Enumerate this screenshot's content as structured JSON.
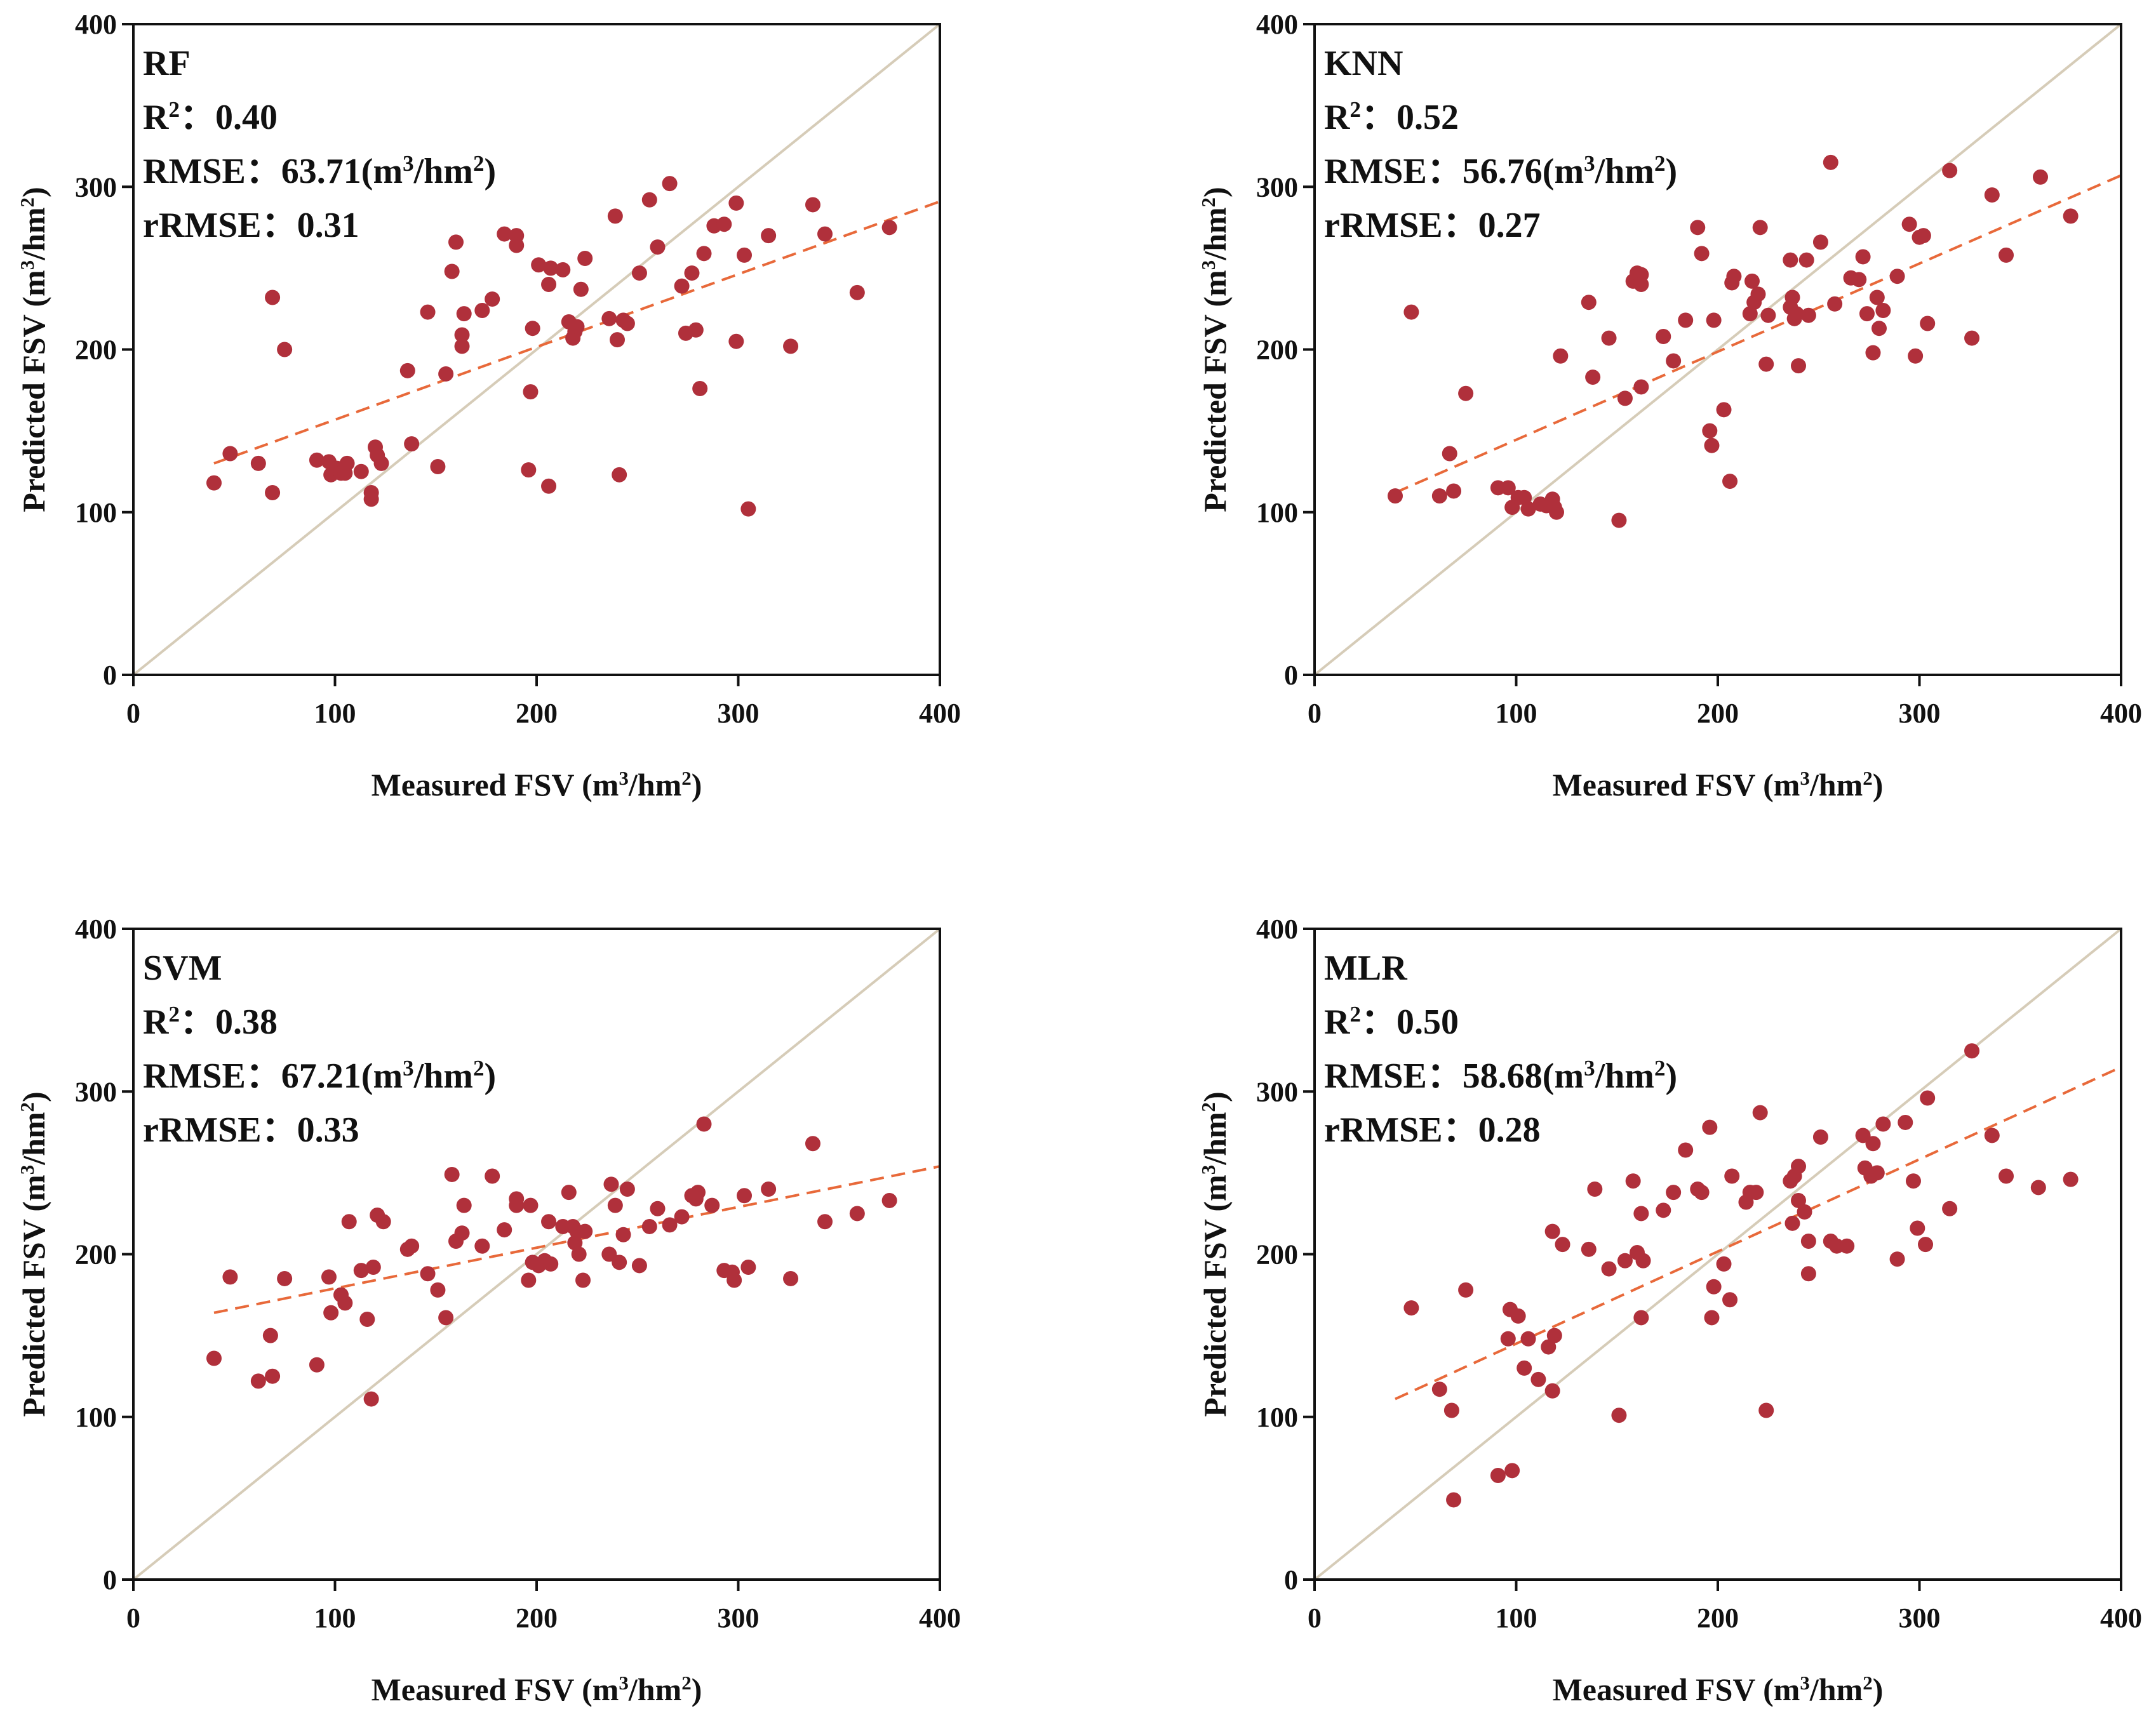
{
  "figure": {
    "axis_x_label": "Measured FSV (m³/hm²)",
    "axis_y_label": "Predicted FSV (m³/hm²)",
    "tick_values": [
      0,
      100,
      200,
      300,
      400
    ],
    "colors": {
      "point": "#b0303b",
      "fit": "#e8693a",
      "one_to_one": "#d6ccb8",
      "axis": "#111111"
    }
  },
  "chart_data": [
    {
      "type": "scatter",
      "title": "RF",
      "stats": {
        "r2_label": "R²：",
        "r2": "0.40",
        "rmse_label": "RMSE：",
        "rmse": "63.71",
        "rmse_unit": "(m³/hm²)",
        "rrmse_label": "rRMSE：",
        "rrmse": "0.31"
      },
      "xlabel": "Measured FSV (m³/hm²)",
      "ylabel": "Predicted FSV (m³/hm²)",
      "xlim": [
        0,
        400
      ],
      "ylim": [
        0,
        400
      ],
      "fit_line": {
        "x": [
          40,
          400
        ],
        "y": [
          130,
          291
        ]
      },
      "points": [
        [
          40,
          118
        ],
        [
          48,
          136
        ],
        [
          62,
          130
        ],
        [
          69,
          232
        ],
        [
          69,
          112
        ],
        [
          75,
          200
        ],
        [
          91,
          132
        ],
        [
          97,
          131
        ],
        [
          98,
          123
        ],
        [
          101,
          127
        ],
        [
          103,
          124
        ],
        [
          105,
          124
        ],
        [
          106,
          130
        ],
        [
          113,
          125
        ],
        [
          118,
          112
        ],
        [
          118,
          108
        ],
        [
          120,
          140
        ],
        [
          121,
          135
        ],
        [
          123,
          130
        ],
        [
          136,
          187
        ],
        [
          138,
          142
        ],
        [
          146,
          223
        ],
        [
          151,
          128
        ],
        [
          155,
          185
        ],
        [
          158,
          248
        ],
        [
          160,
          266
        ],
        [
          163,
          209
        ],
        [
          163,
          202
        ],
        [
          164,
          222
        ],
        [
          173,
          224
        ],
        [
          178,
          231
        ],
        [
          184,
          271
        ],
        [
          190,
          270
        ],
        [
          190,
          264
        ],
        [
          196,
          126
        ],
        [
          197,
          174
        ],
        [
          198,
          213
        ],
        [
          201,
          252
        ],
        [
          206,
          116
        ],
        [
          206,
          240
        ],
        [
          207,
          250
        ],
        [
          213,
          249
        ],
        [
          216,
          217
        ],
        [
          218,
          207
        ],
        [
          219,
          211
        ],
        [
          220,
          214
        ],
        [
          222,
          237
        ],
        [
          224,
          256
        ],
        [
          236,
          219
        ],
        [
          239,
          282
        ],
        [
          240,
          206
        ],
        [
          241,
          123
        ],
        [
          243,
          218
        ],
        [
          245,
          216
        ],
        [
          251,
          247
        ],
        [
          256,
          292
        ],
        [
          260,
          263
        ],
        [
          266,
          302
        ],
        [
          272,
          239
        ],
        [
          274,
          210
        ],
        [
          277,
          247
        ],
        [
          279,
          212
        ],
        [
          281,
          176
        ],
        [
          283,
          259
        ],
        [
          288,
          276
        ],
        [
          293,
          277
        ],
        [
          299,
          290
        ],
        [
          299,
          205
        ],
        [
          303,
          258
        ],
        [
          305,
          102
        ],
        [
          315,
          270
        ],
        [
          326,
          202
        ],
        [
          337,
          289
        ],
        [
          343,
          271
        ],
        [
          359,
          235
        ],
        [
          375,
          275
        ]
      ]
    },
    {
      "type": "scatter",
      "title": "KNN",
      "stats": {
        "r2_label": "R²：",
        "r2": "0.52",
        "rmse_label": "RMSE：",
        "rmse": "56.76",
        "rmse_unit": "(m³/hm²)",
        "rrmse_label": "rRMSE：",
        "rrmse": "0.27"
      },
      "xlabel": "Measured FSV (m³/hm²)",
      "ylabel": "Predicted FSV (m³/hm²)",
      "xlim": [
        0,
        400
      ],
      "ylim": [
        0,
        400
      ],
      "fit_line": {
        "x": [
          40,
          400
        ],
        "y": [
          112,
          307
        ]
      },
      "points": [
        [
          40,
          110
        ],
        [
          48,
          223
        ],
        [
          62,
          110
        ],
        [
          67,
          136
        ],
        [
          69,
          113
        ],
        [
          75,
          173
        ],
        [
          91,
          115
        ],
        [
          96,
          115
        ],
        [
          98,
          103
        ],
        [
          101,
          109
        ],
        [
          104,
          109
        ],
        [
          106,
          102
        ],
        [
          112,
          105
        ],
        [
          115,
          104
        ],
        [
          118,
          108
        ],
        [
          119,
          103
        ],
        [
          120,
          100
        ],
        [
          122,
          196
        ],
        [
          136,
          229
        ],
        [
          138,
          183
        ],
        [
          146,
          207
        ],
        [
          151,
          95
        ],
        [
          154,
          170
        ],
        [
          158,
          242
        ],
        [
          160,
          247
        ],
        [
          162,
          246
        ],
        [
          162,
          240
        ],
        [
          162,
          177
        ],
        [
          173,
          208
        ],
        [
          178,
          193
        ],
        [
          184,
          218
        ],
        [
          190,
          275
        ],
        [
          192,
          259
        ],
        [
          196,
          150
        ],
        [
          197,
          141
        ],
        [
          198,
          218
        ],
        [
          203,
          163
        ],
        [
          206,
          119
        ],
        [
          207,
          241
        ],
        [
          208,
          245
        ],
        [
          216,
          222
        ],
        [
          217,
          242
        ],
        [
          218,
          229
        ],
        [
          220,
          234
        ],
        [
          221,
          275
        ],
        [
          224,
          191
        ],
        [
          225,
          221
        ],
        [
          236,
          226
        ],
        [
          236,
          255
        ],
        [
          237,
          232
        ],
        [
          238,
          219
        ],
        [
          239,
          222
        ],
        [
          240,
          190
        ],
        [
          244,
          255
        ],
        [
          245,
          221
        ],
        [
          251,
          266
        ],
        [
          256,
          315
        ],
        [
          258,
          228
        ],
        [
          266,
          244
        ],
        [
          270,
          243
        ],
        [
          272,
          257
        ],
        [
          274,
          222
        ],
        [
          277,
          198
        ],
        [
          279,
          232
        ],
        [
          280,
          213
        ],
        [
          282,
          224
        ],
        [
          289,
          245
        ],
        [
          295,
          277
        ],
        [
          298,
          196
        ],
        [
          300,
          269
        ],
        [
          302,
          270
        ],
        [
          304,
          216
        ],
        [
          315,
          310
        ],
        [
          326,
          207
        ],
        [
          336,
          295
        ],
        [
          343,
          258
        ],
        [
          360,
          306
        ],
        [
          375,
          282
        ]
      ]
    },
    {
      "type": "scatter",
      "title": "SVM",
      "stats": {
        "r2_label": "R²：",
        "r2": "0.38",
        "rmse_label": "RMSE：",
        "rmse": "67.21",
        "rmse_unit": "(m³/hm²)",
        "rrmse_label": "rRMSE：",
        "rrmse": "0.33"
      },
      "xlabel": "Measured FSV (m³/hm²)",
      "ylabel": "Predicted FSV (m³/hm²)",
      "xlim": [
        0,
        400
      ],
      "ylim": [
        0,
        400
      ],
      "fit_line": {
        "x": [
          40,
          400
        ],
        "y": [
          164,
          254
        ]
      },
      "points": [
        [
          40,
          136
        ],
        [
          48,
          186
        ],
        [
          62,
          122
        ],
        [
          68,
          150
        ],
        [
          69,
          125
        ],
        [
          75,
          185
        ],
        [
          91,
          132
        ],
        [
          97,
          186
        ],
        [
          98,
          164
        ],
        [
          103,
          175
        ],
        [
          105,
          170
        ],
        [
          107,
          220
        ],
        [
          113,
          190
        ],
        [
          116,
          160
        ],
        [
          118,
          111
        ],
        [
          119,
          192
        ],
        [
          121,
          224
        ],
        [
          124,
          220
        ],
        [
          136,
          203
        ],
        [
          138,
          205
        ],
        [
          146,
          188
        ],
        [
          151,
          178
        ],
        [
          155,
          161
        ],
        [
          158,
          249
        ],
        [
          160,
          208
        ],
        [
          163,
          213
        ],
        [
          164,
          230
        ],
        [
          173,
          205
        ],
        [
          178,
          248
        ],
        [
          184,
          215
        ],
        [
          190,
          234
        ],
        [
          190,
          230
        ],
        [
          196,
          184
        ],
        [
          197,
          230
        ],
        [
          198,
          195
        ],
        [
          201,
          193
        ],
        [
          204,
          196
        ],
        [
          206,
          220
        ],
        [
          207,
          194
        ],
        [
          213,
          217
        ],
        [
          216,
          238
        ],
        [
          218,
          217
        ],
        [
          219,
          207
        ],
        [
          220,
          214
        ],
        [
          221,
          200
        ],
        [
          223,
          184
        ],
        [
          224,
          214
        ],
        [
          236,
          200
        ],
        [
          237,
          243
        ],
        [
          239,
          230
        ],
        [
          241,
          195
        ],
        [
          243,
          212
        ],
        [
          245,
          240
        ],
        [
          251,
          193
        ],
        [
          256,
          217
        ],
        [
          260,
          228
        ],
        [
          266,
          218
        ],
        [
          272,
          223
        ],
        [
          277,
          236
        ],
        [
          279,
          234
        ],
        [
          280,
          238
        ],
        [
          283,
          280
        ],
        [
          287,
          230
        ],
        [
          293,
          190
        ],
        [
          297,
          189
        ],
        [
          298,
          184
        ],
        [
          303,
          236
        ],
        [
          305,
          192
        ],
        [
          315,
          240
        ],
        [
          326,
          185
        ],
        [
          337,
          268
        ],
        [
          343,
          220
        ],
        [
          359,
          225
        ],
        [
          375,
          233
        ]
      ]
    },
    {
      "type": "scatter",
      "title": "MLR",
      "stats": {
        "r2_label": "R²：",
        "r2": "0.50",
        "rmse_label": "RMSE：",
        "rmse": "58.68",
        "rmse_unit": "(m³/hm²)",
        "rrmse_label": "rRMSE：",
        "rrmse": "0.28"
      },
      "xlabel": "Measured FSV (m³/hm²)",
      "ylabel": "Predicted FSV (m³/hm²)",
      "xlim": [
        0,
        400
      ],
      "ylim": [
        0,
        400
      ],
      "fit_line": {
        "x": [
          40,
          400
        ],
        "y": [
          111,
          315
        ]
      },
      "points": [
        [
          48,
          167
        ],
        [
          62,
          117
        ],
        [
          68,
          104
        ],
        [
          69,
          49
        ],
        [
          75,
          178
        ],
        [
          91,
          64
        ],
        [
          96,
          148
        ],
        [
          97,
          166
        ],
        [
          98,
          67
        ],
        [
          101,
          162
        ],
        [
          104,
          130
        ],
        [
          106,
          148
        ],
        [
          111,
          123
        ],
        [
          116,
          143
        ],
        [
          118,
          116
        ],
        [
          118,
          214
        ],
        [
          119,
          150
        ],
        [
          123,
          206
        ],
        [
          136,
          203
        ],
        [
          139,
          240
        ],
        [
          146,
          191
        ],
        [
          151,
          101
        ],
        [
          154,
          196
        ],
        [
          158,
          245
        ],
        [
          160,
          201
        ],
        [
          162,
          161
        ],
        [
          162,
          225
        ],
        [
          163,
          196
        ],
        [
          173,
          227
        ],
        [
          178,
          238
        ],
        [
          184,
          264
        ],
        [
          190,
          240
        ],
        [
          192,
          238
        ],
        [
          196,
          278
        ],
        [
          197,
          161
        ],
        [
          198,
          180
        ],
        [
          203,
          194
        ],
        [
          206,
          172
        ],
        [
          207,
          248
        ],
        [
          214,
          232
        ],
        [
          216,
          238
        ],
        [
          219,
          238
        ],
        [
          221,
          287
        ],
        [
          224,
          104
        ],
        [
          236,
          245
        ],
        [
          237,
          219
        ],
        [
          238,
          248
        ],
        [
          240,
          254
        ],
        [
          240,
          233
        ],
        [
          243,
          226
        ],
        [
          245,
          188
        ],
        [
          245,
          208
        ],
        [
          251,
          272
        ],
        [
          256,
          208
        ],
        [
          259,
          205
        ],
        [
          264,
          205
        ],
        [
          272,
          273
        ],
        [
          273,
          253
        ],
        [
          276,
          248
        ],
        [
          277,
          268
        ],
        [
          279,
          250
        ],
        [
          282,
          280
        ],
        [
          289,
          197
        ],
        [
          293,
          281
        ],
        [
          297,
          245
        ],
        [
          299,
          216
        ],
        [
          303,
          206
        ],
        [
          304,
          296
        ],
        [
          315,
          228
        ],
        [
          326,
          325
        ],
        [
          336,
          273
        ],
        [
          343,
          248
        ],
        [
          359,
          241
        ],
        [
          375,
          246
        ]
      ]
    }
  ]
}
